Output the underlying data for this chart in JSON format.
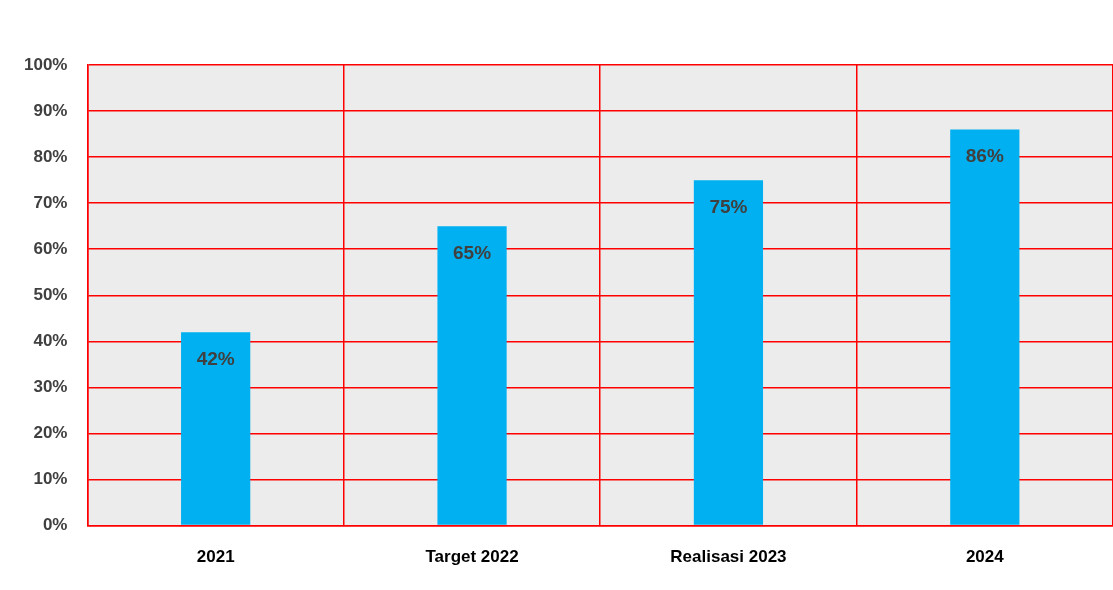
{
  "chart_data": {
    "type": "bar",
    "categories": [
      "2021",
      "Target 2022",
      "Realisasi 2023",
      "2024"
    ],
    "values": [
      42,
      65,
      75,
      86
    ],
    "color": "#00b0f0",
    "ylim": [
      0,
      100
    ],
    "yticks": [
      {
        "value": 0,
        "label": "0%"
      },
      {
        "value": 10,
        "label": "10%"
      },
      {
        "value": 20,
        "label": "20%"
      },
      {
        "value": 30,
        "label": "30%"
      },
      {
        "value": 40,
        "label": "40%"
      },
      {
        "value": 50,
        "label": "50%"
      },
      {
        "value": 60,
        "label": "60%"
      },
      {
        "value": 70,
        "label": "70%"
      },
      {
        "value": 80,
        "label": "80%"
      },
      {
        "value": 90,
        "label": "90%"
      },
      {
        "value": 100,
        "label": "100%"
      }
    ],
    "value_labels": [
      "42%",
      "65%",
      "75%",
      "86%"
    ],
    "grid": true
  }
}
